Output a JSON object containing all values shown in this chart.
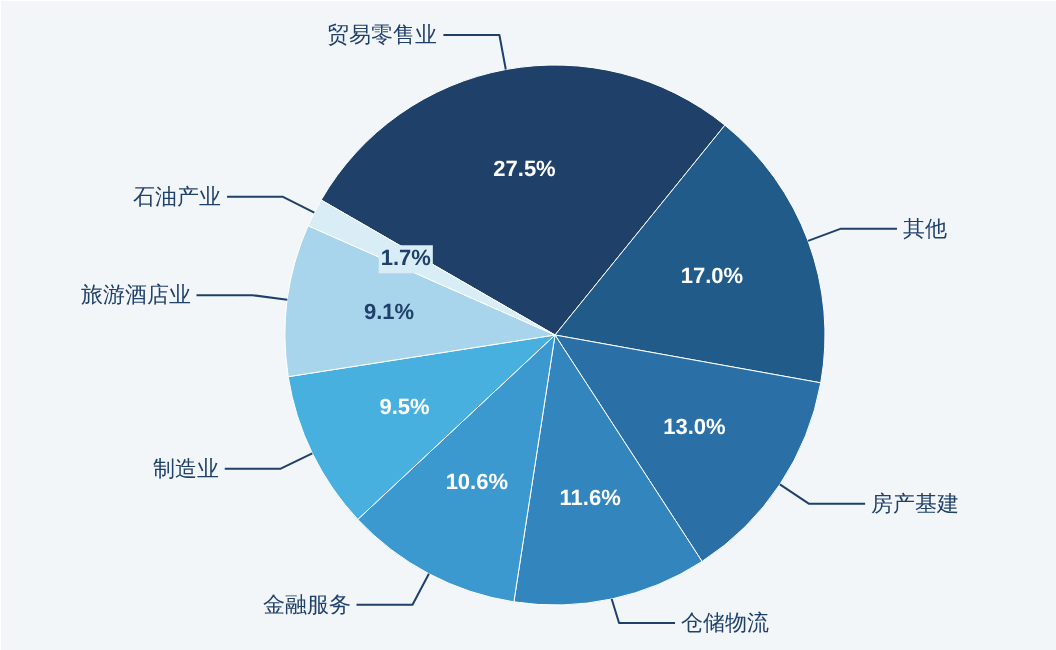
{
  "chart_data": {
    "type": "pie",
    "categories": [
      "贸易零售业",
      "其他",
      "房产基建",
      "仓储物流",
      "金融服务",
      "制造业",
      "旅游酒店业",
      "石油产业"
    ],
    "values": [
      27.5,
      17.0,
      13.0,
      11.6,
      10.6,
      9.5,
      9.1,
      1.7
    ],
    "colors": [
      "#1f4068",
      "#215b8a",
      "#2a70a6",
      "#3385bd",
      "#3c99d0",
      "#47b0df",
      "#a9d5ec",
      "#d9edf7"
    ],
    "value_labels": [
      "27.5%",
      "17.0%",
      "13.0%",
      "11.6%",
      "10.6%",
      "9.5%",
      "9.1%",
      "1.7%"
    ]
  }
}
